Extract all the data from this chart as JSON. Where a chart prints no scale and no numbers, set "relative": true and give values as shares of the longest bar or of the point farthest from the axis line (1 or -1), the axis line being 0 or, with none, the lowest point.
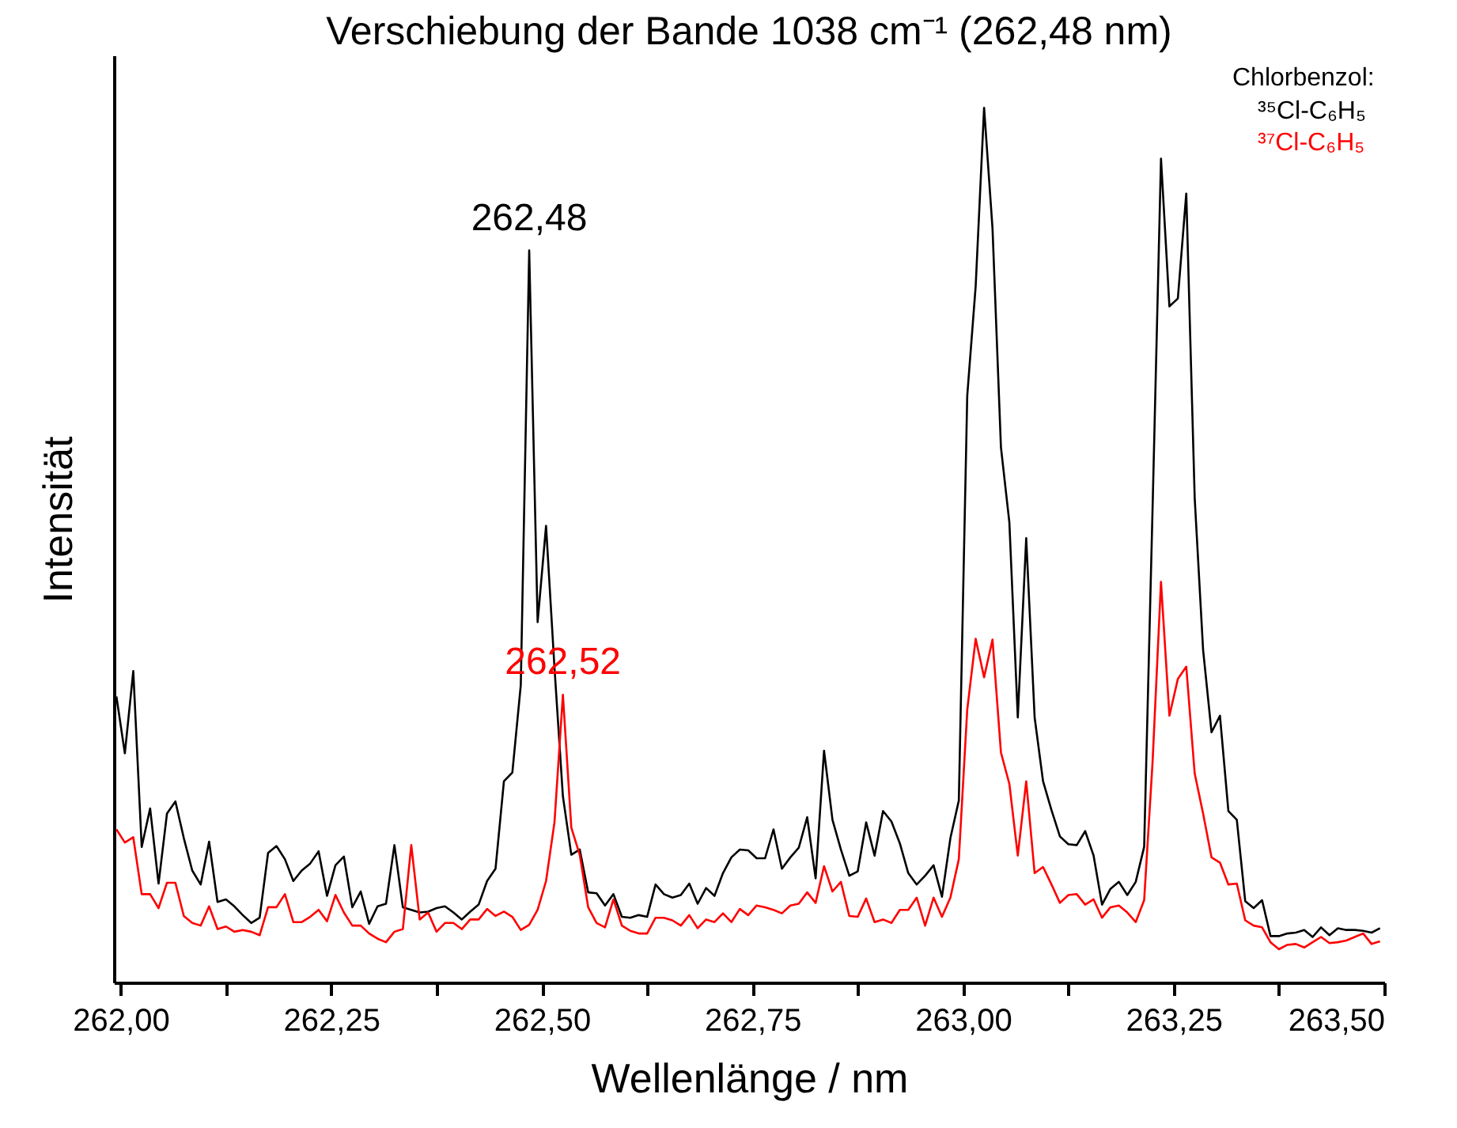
{
  "chart_data": {
    "type": "line",
    "title": "Verschiebung der Bande 1038 cm⁻¹ (262,48 nm)",
    "xlabel": "Wellenlänge / nm",
    "ylabel": "Intensität",
    "legend_title": "Chlorbenzol:",
    "relative": true,
    "grid": false,
    "legend": "top right",
    "marker": "none",
    "line_style": "solid",
    "xlim": [
      261.992,
      263.5
    ],
    "xticks": [
      {
        "value": 262,
        "label": "262,00"
      },
      {
        "value": 262.125,
        "label": null
      },
      {
        "value": 262.25,
        "label": "262,25"
      },
      {
        "value": 262.375,
        "label": null
      },
      {
        "value": 262.5,
        "label": "262,50"
      },
      {
        "value": 262.625,
        "label": null
      },
      {
        "value": 262.75,
        "label": "262,75"
      },
      {
        "value": 262.875,
        "label": null
      },
      {
        "value": 263,
        "label": "263,00"
      },
      {
        "value": 263.125,
        "label": null
      },
      {
        "value": 263.25,
        "label": "263,25"
      },
      {
        "value": 263.375,
        "label": null
      },
      {
        "value": 263.5,
        "label": "263,50"
      }
    ],
    "x": [
      261.995,
      262.005,
      262.015,
      262.025,
      262.035,
      262.045,
      262.055,
      262.065,
      262.075,
      262.085,
      262.095,
      262.105,
      262.115,
      262.125,
      262.135,
      262.145,
      262.155,
      262.165,
      262.175,
      262.185,
      262.195,
      262.205,
      262.215,
      262.225,
      262.235,
      262.245,
      262.255,
      262.265,
      262.275,
      262.285,
      262.295,
      262.305,
      262.315,
      262.325,
      262.335,
      262.345,
      262.355,
      262.365,
      262.375,
      262.385,
      262.395,
      262.405,
      262.415,
      262.425,
      262.435,
      262.445,
      262.455,
      262.465,
      262.475,
      262.485,
      262.495,
      262.505,
      262.515,
      262.525,
      262.535,
      262.545,
      262.555,
      262.565,
      262.575,
      262.585,
      262.595,
      262.605,
      262.615,
      262.625,
      262.635,
      262.645,
      262.655,
      262.665,
      262.675,
      262.685,
      262.695,
      262.705,
      262.715,
      262.725,
      262.735,
      262.745,
      262.755,
      262.765,
      262.775,
      262.785,
      262.795,
      262.805,
      262.815,
      262.825,
      262.835,
      262.845,
      262.855,
      262.865,
      262.875,
      262.885,
      262.895,
      262.905,
      262.915,
      262.925,
      262.935,
      262.945,
      262.955,
      262.965,
      262.975,
      262.985,
      262.995,
      263.005,
      263.015,
      263.025,
      263.035,
      263.045,
      263.055,
      263.065,
      263.075,
      263.085,
      263.095,
      263.105,
      263.115,
      263.125,
      263.135,
      263.145,
      263.155,
      263.165,
      263.175,
      263.185,
      263.195,
      263.205,
      263.215,
      263.225,
      263.235,
      263.245,
      263.255,
      263.265,
      263.275,
      263.285,
      263.295,
      263.305,
      263.315,
      263.325,
      263.335,
      263.345,
      263.355,
      263.365,
      263.375,
      263.385,
      263.395,
      263.405,
      263.415,
      263.425,
      263.435,
      263.445,
      263.455,
      263.465,
      263.475,
      263.485,
      263.495
    ],
    "series": [
      {
        "name": "³⁵Cl-C₆H₅",
        "color": "#000000",
        "values": [
          0.327,
          0.262,
          0.356,
          0.155,
          0.199,
          0.113,
          0.193,
          0.207,
          0.165,
          0.128,
          0.112,
          0.161,
          0.092,
          0.095,
          0.087,
          0.077,
          0.068,
          0.074,
          0.148,
          0.156,
          0.141,
          0.116,
          0.128,
          0.136,
          0.15,
          0.099,
          0.134,
          0.144,
          0.086,
          0.104,
          0.067,
          0.087,
          0.09,
          0.157,
          0.086,
          0.083,
          0.08,
          0.081,
          0.085,
          0.087,
          0.08,
          0.072,
          0.081,
          0.089,
          0.116,
          0.13,
          0.23,
          0.24,
          0.34,
          0.837,
          0.412,
          0.522,
          0.36,
          0.213,
          0.146,
          0.152,
          0.103,
          0.102,
          0.088,
          0.101,
          0.075,
          0.074,
          0.077,
          0.075,
          0.112,
          0.101,
          0.097,
          0.1,
          0.113,
          0.09,
          0.108,
          0.099,
          0.125,
          0.143,
          0.152,
          0.151,
          0.142,
          0.142,
          0.175,
          0.13,
          0.143,
          0.154,
          0.189,
          0.119,
          0.265,
          0.186,
          0.152,
          0.122,
          0.127,
          0.183,
          0.145,
          0.196,
          0.184,
          0.159,
          0.125,
          0.112,
          0.122,
          0.134,
          0.098,
          0.165,
          0.208,
          0.671,
          0.796,
          1,
          0.862,
          0.612,
          0.526,
          0.303,
          0.508,
          0.303,
          0.23,
          0.197,
          0.167,
          0.158,
          0.157,
          0.173,
          0.145,
          0.089,
          0.107,
          0.115,
          0.1,
          0.115,
          0.155,
          0.542,
          0.942,
          0.773,
          0.782,
          0.902,
          0.554,
          0.38,
          0.286,
          0.305,
          0.196,
          0.186,
          0.093,
          0.085,
          0.094,
          0.053,
          0.053,
          0.056,
          0.057,
          0.06,
          0.052,
          0.063,
          0.054,
          0.062,
          0.06,
          0.06,
          0.059,
          0.057,
          0.062
        ]
      },
      {
        "name": "³⁷Cl-C₆H₅",
        "color": "#ff0000",
        "values": [
          0.175,
          0.16,
          0.166,
          0.101,
          0.101,
          0.085,
          0.114,
          0.114,
          0.076,
          0.068,
          0.065,
          0.087,
          0.061,
          0.064,
          0.058,
          0.06,
          0.058,
          0.054,
          0.086,
          0.086,
          0.101,
          0.069,
          0.069,
          0.075,
          0.083,
          0.07,
          0.1,
          0.08,
          0.065,
          0.065,
          0.056,
          0.05,
          0.046,
          0.058,
          0.061,
          0.157,
          0.072,
          0.08,
          0.058,
          0.068,
          0.068,
          0.061,
          0.072,
          0.072,
          0.084,
          0.076,
          0.081,
          0.075,
          0.06,
          0.066,
          0.083,
          0.116,
          0.183,
          0.329,
          0.177,
          0.146,
          0.086,
          0.068,
          0.063,
          0.095,
          0.065,
          0.059,
          0.056,
          0.056,
          0.074,
          0.074,
          0.071,
          0.065,
          0.077,
          0.062,
          0.072,
          0.069,
          0.079,
          0.069,
          0.084,
          0.077,
          0.088,
          0.086,
          0.083,
          0.079,
          0.088,
          0.09,
          0.103,
          0.091,
          0.133,
          0.104,
          0.115,
          0.076,
          0.075,
          0.096,
          0.069,
          0.072,
          0.068,
          0.083,
          0.083,
          0.097,
          0.065,
          0.097,
          0.075,
          0.097,
          0.141,
          0.312,
          0.393,
          0.349,
          0.392,
          0.263,
          0.227,
          0.145,
          0.23,
          0.125,
          0.132,
          0.112,
          0.091,
          0.1,
          0.101,
          0.089,
          0.095,
          0.074,
          0.086,
          0.088,
          0.08,
          0.069,
          0.094,
          0.252,
          0.458,
          0.305,
          0.347,
          0.361,
          0.239,
          0.193,
          0.143,
          0.137,
          0.112,
          0.113,
          0.071,
          0.065,
          0.063,
          0.046,
          0.038,
          0.043,
          0.044,
          0.04,
          0.046,
          0.052,
          0.045,
          0.046,
          0.048,
          0.052,
          0.056,
          0.044,
          0.047
        ]
      }
    ],
    "annotations": [
      {
        "text": "262,48",
        "x": 262.485,
        "y": 0.837
      },
      {
        "text": "262,52",
        "x": 262.525,
        "y": 0.329
      }
    ]
  }
}
